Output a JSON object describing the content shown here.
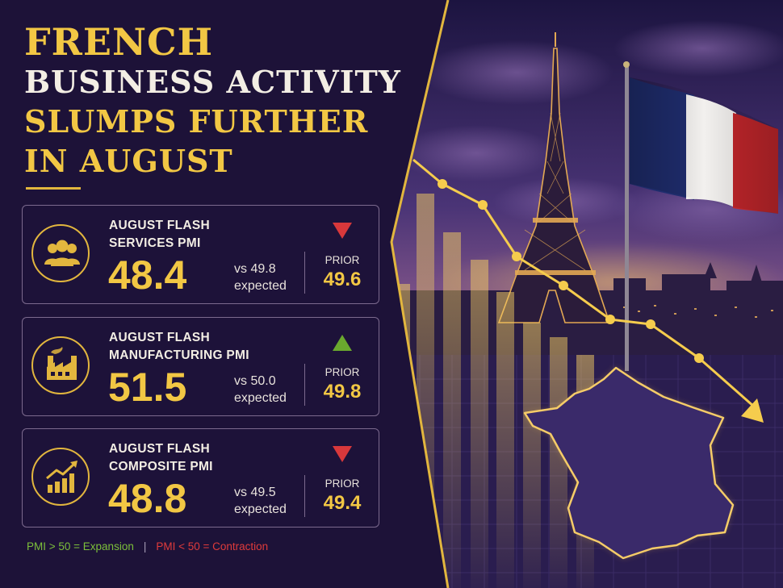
{
  "title": {
    "line1": "FRENCH",
    "line2": "BUSINESS ACTIVITY",
    "line3": "SLUMPS FURTHER",
    "line4": "IN AUGUST"
  },
  "cards": [
    {
      "label_line1": "AUGUST FLASH",
      "label_line2": "SERVICES PMI",
      "value": "48.4",
      "expected_line1": "vs 49.8",
      "expected_line2": "expected",
      "prior_label": "PRIOR",
      "prior_value": "49.6",
      "direction": "down",
      "icon": "people-group-icon"
    },
    {
      "label_line1": "AUGUST FLASH",
      "label_line2": "MANUFACTURING PMI",
      "value": "51.5",
      "expected_line1": "vs 50.0",
      "expected_line2": "expected",
      "prior_label": "PRIOR",
      "prior_value": "49.8",
      "direction": "up",
      "icon": "factory-icon"
    },
    {
      "label_line1": "AUGUST FLASH",
      "label_line2": "COMPOSITE PMI",
      "value": "48.8",
      "expected_line1": "vs 49.5",
      "expected_line2": "expected",
      "prior_label": "PRIOR",
      "prior_value": "49.4",
      "direction": "down",
      "icon": "growth-chart-icon"
    }
  ],
  "legend": {
    "expansion": "PMI > 50 = Expansion",
    "separator": "|",
    "contraction": "PMI < 50 = Contraction"
  },
  "colors": {
    "gold": "#f2c744",
    "background": "#1a1033",
    "up": "#6aa82e",
    "down": "#d8383b",
    "flag_blue": "#1f2d6e",
    "flag_white": "#f2f0ee",
    "flag_red": "#c1262b"
  }
}
